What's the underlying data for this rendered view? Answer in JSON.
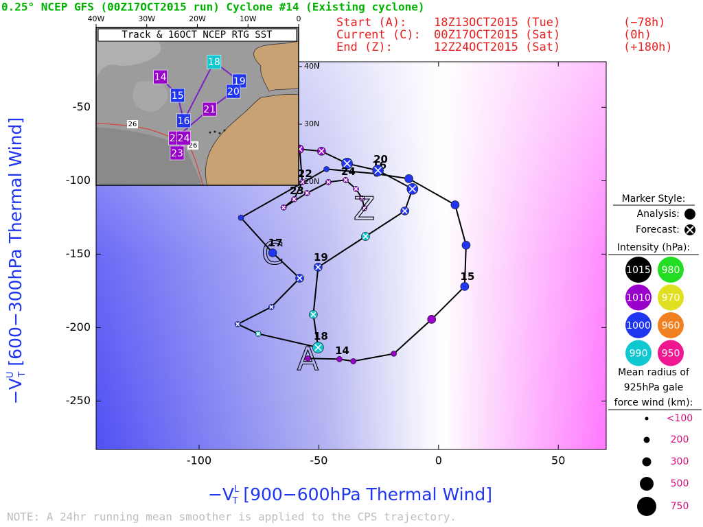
{
  "chart_data": {
    "type": "line",
    "title": "0.25° NCEP GFS (00Z17OCT2015 run) Cyclone #14 (Existing cyclone)",
    "header": [
      {
        "label": "Start (A):",
        "date": "18Z13OCT2015 (Tue)",
        "offset": "(−78h)"
      },
      {
        "label": "Current (C):",
        "date": "00Z17OCT2015 (Sat)",
        "offset": "(0h)"
      },
      {
        "label": "End (Z):",
        "date": "12Z24OCT2015 (Sat)",
        "offset": "(+180h)"
      }
    ],
    "x_label": {
      "main": "−V",
      "sub": "T",
      "sup": "L",
      "rest": " [900−600hPa Thermal Wind]"
    },
    "y_label": {
      "main": "−V",
      "sub": "T",
      "sup": "U",
      "rest": " [600−300hPa Thermal Wind]"
    },
    "note": "NOTE:  A 24hr running mean smoother is applied to the CPS trajectory.",
    "xlim": [
      -143,
      70
    ],
    "ylim": [
      -283,
      -19
    ],
    "xticks": [
      -100,
      -50,
      0,
      50
    ],
    "yticks": [
      -50,
      -100,
      -150,
      -200,
      -250
    ],
    "track": {
      "x": [
        -54.6,
        -41.4,
        -35.6,
        -18.7,
        -2.9,
        10.9,
        11.5,
        6.9,
        -12.4,
        -25.9,
        -46.8,
        -82.5,
        -69.3,
        -58.0,
        -69.8,
        -83.9,
        -75.3,
        -50.3,
        -52.3,
        -50.3,
        -30.5,
        -14.1,
        -10.9,
        -25.3,
        -38.2,
        -48.9,
        -58.0,
        -56.9,
        -60.3,
        -64.7,
        -54.9,
        -46.0,
        -38.8,
        -34.5,
        -31.9,
        -31.0
      ],
      "y": [
        -221.0,
        -221.5,
        -222.9,
        -217.8,
        -194.4,
        -172.0,
        -143.9,
        -116.4,
        -98.6,
        -95.3,
        -92.1,
        -125.2,
        -149.1,
        -166.4,
        -186.0,
        -197.7,
        -204.2,
        -213.6,
        -191.1,
        -158.9,
        -137.9,
        -120.6,
        -105.6,
        -93.0,
        -88.3,
        -79.9,
        -78.5,
        -100.9,
        -112.6,
        -118.2,
        -108.4,
        -100.9,
        -99.5,
        -105.6,
        -112.1,
        -118.7
      ],
      "intensity": [
        1010,
        1010,
        1010,
        1010,
        1010,
        1000,
        1000,
        1000,
        1000,
        1000,
        1000,
        1000,
        1000,
        1000,
        1000,
        1000,
        990,
        990,
        990,
        1000,
        990,
        1000,
        1000,
        1000,
        1000,
        1010,
        1010,
        1010,
        1010,
        1010,
        1010,
        1010,
        1010,
        1010,
        1010,
        1010
      ],
      "gale_radius_km": [
        100,
        100,
        100,
        100,
        200,
        200,
        200,
        200,
        200,
        100,
        100,
        100,
        200,
        200,
        100,
        100,
        100,
        300,
        200,
        200,
        200,
        200,
        300,
        300,
        300,
        200,
        200,
        100,
        100,
        100,
        100,
        100,
        100,
        100,
        100,
        100
      ],
      "forecast": [
        false,
        false,
        false,
        false,
        false,
        false,
        false,
        false,
        false,
        false,
        false,
        false,
        false,
        true,
        true,
        true,
        true,
        true,
        true,
        true,
        true,
        true,
        true,
        true,
        true,
        true,
        true,
        true,
        true,
        true,
        true,
        true,
        true,
        true,
        true,
        true
      ],
      "labels": [
        null,
        "14",
        null,
        null,
        null,
        "15",
        null,
        null,
        null,
        "16",
        null,
        null,
        "17",
        null,
        null,
        null,
        null,
        "18",
        null,
        "19",
        null,
        null,
        null,
        "20",
        null,
        null,
        null,
        "22",
        "23",
        null,
        null,
        null,
        "24",
        null,
        null,
        null
      ],
      "markers": {
        "start": "A",
        "current": "C",
        "end": "Z"
      }
    },
    "legend": {
      "marker_title": "Marker Style:",
      "analysis": "Analysis:",
      "forecast": "Forecast:",
      "intensity_title": "Intensity (hPa):",
      "intensities": [
        {
          "value": 1015,
          "color": "#000000"
        },
        {
          "value": 980,
          "color": "#22dd22"
        },
        {
          "value": 1010,
          "color": "#9900cc"
        },
        {
          "value": 970,
          "color": "#e0e020"
        },
        {
          "value": 1000,
          "color": "#1f35f0"
        },
        {
          "value": 960,
          "color": "#f08020"
        },
        {
          "value": 990,
          "color": "#10c8d0"
        },
        {
          "value": 950,
          "color": "#f01890"
        }
      ],
      "size_title": [
        "Mean radius of",
        "925hPa gale",
        "force wind (km):"
      ],
      "sizes": [
        {
          "value": 100,
          "label": "<100"
        },
        200,
        300,
        500,
        750
      ]
    },
    "inset": {
      "title": "Track & 16OCT NCEP RTG SST",
      "lonlim": [
        -40,
        0
      ],
      "latlim": [
        19.4,
        44.4
      ],
      "lonticks": [
        {
          "value": -40,
          "label": "40W"
        },
        {
          "value": -30,
          "label": "30W"
        },
        {
          "value": -20,
          "label": "20W"
        },
        {
          "value": -10,
          "label": "10W"
        },
        0
      ],
      "latticks": [
        {
          "value": 40,
          "label": "40N"
        },
        {
          "value": 30,
          "label": "30N"
        },
        {
          "value": 20,
          "label": "20N"
        }
      ],
      "sst_label": "26",
      "track": {
        "labels": [
          "14",
          "15",
          "16",
          "18",
          "19",
          "20",
          "21",
          "22",
          "24",
          "23"
        ],
        "lon": [
          -27.3,
          -23.9,
          -22.7,
          -16.7,
          -11.7,
          -12.9,
          -17.6,
          -24.3,
          -22.7,
          -24.0
        ],
        "lat": [
          38.2,
          35.0,
          30.6,
          40.8,
          37.5,
          35.7,
          32.6,
          27.6,
          27.6,
          25.0
        ],
        "intensity": [
          1010,
          1000,
          1000,
          990,
          1000,
          1000,
          1010,
          1010,
          1010,
          1010
        ]
      }
    }
  }
}
